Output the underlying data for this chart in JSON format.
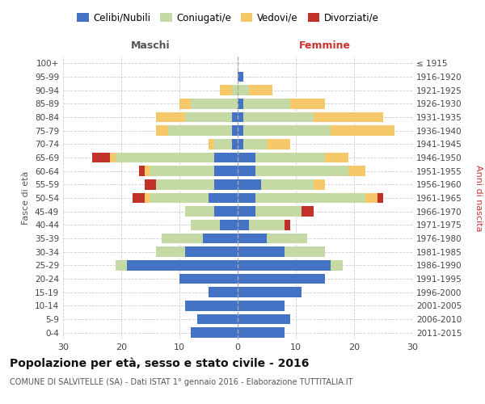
{
  "age_groups_bottom_to_top": [
    "0-4",
    "5-9",
    "10-14",
    "15-19",
    "20-24",
    "25-29",
    "30-34",
    "35-39",
    "40-44",
    "45-49",
    "50-54",
    "55-59",
    "60-64",
    "65-69",
    "70-74",
    "75-79",
    "80-84",
    "85-89",
    "90-94",
    "95-99",
    "100+"
  ],
  "birth_years_bottom_to_top": [
    "2011-2015",
    "2006-2010",
    "2001-2005",
    "1996-2000",
    "1991-1995",
    "1986-1990",
    "1981-1985",
    "1976-1980",
    "1971-1975",
    "1966-1970",
    "1961-1965",
    "1956-1960",
    "1951-1955",
    "1946-1950",
    "1941-1945",
    "1936-1940",
    "1931-1935",
    "1926-1930",
    "1921-1925",
    "1916-1920",
    "≤ 1915"
  ],
  "male": {
    "celibi": [
      8,
      7,
      9,
      5,
      10,
      19,
      9,
      6,
      3,
      4,
      5,
      4,
      4,
      4,
      1,
      1,
      1,
      0,
      0,
      0,
      0
    ],
    "coniugati": [
      0,
      0,
      0,
      0,
      0,
      2,
      5,
      7,
      5,
      5,
      10,
      10,
      11,
      17,
      3,
      11,
      8,
      8,
      1,
      0,
      0
    ],
    "vedovi": [
      0,
      0,
      0,
      0,
      0,
      0,
      0,
      0,
      0,
      0,
      1,
      0,
      1,
      1,
      1,
      2,
      5,
      2,
      2,
      0,
      0
    ],
    "divorziati": [
      0,
      0,
      0,
      0,
      0,
      0,
      0,
      0,
      0,
      0,
      2,
      2,
      1,
      3,
      0,
      0,
      0,
      0,
      0,
      0,
      0
    ]
  },
  "female": {
    "nubili": [
      8,
      9,
      8,
      11,
      15,
      16,
      8,
      5,
      2,
      3,
      3,
      4,
      3,
      3,
      1,
      1,
      1,
      1,
      0,
      1,
      0
    ],
    "coniugate": [
      0,
      0,
      0,
      0,
      0,
      2,
      7,
      7,
      6,
      8,
      19,
      9,
      16,
      12,
      4,
      15,
      12,
      8,
      2,
      0,
      0
    ],
    "vedove": [
      0,
      0,
      0,
      0,
      0,
      0,
      0,
      0,
      0,
      0,
      2,
      2,
      3,
      4,
      4,
      11,
      12,
      6,
      4,
      0,
      0
    ],
    "divorziate": [
      0,
      0,
      0,
      0,
      0,
      0,
      0,
      0,
      1,
      2,
      1,
      0,
      0,
      0,
      0,
      0,
      0,
      0,
      0,
      0,
      0
    ]
  },
  "colors": {
    "celibi": "#4472c4",
    "coniugati": "#c5d9a4",
    "vedovi": "#f5c96a",
    "divorziati": "#c0312a"
  },
  "xlim": 30,
  "title": "Popolazione per età, sesso e stato civile - 2016",
  "subtitle": "COMUNE DI SALVITELLE (SA) - Dati ISTAT 1° gennaio 2016 - Elaborazione TUTTITALIA.IT",
  "ylabel_left": "Fasce di età",
  "ylabel_right": "Anni di nascita",
  "xlabel_left": "Maschi",
  "xlabel_right": "Femmine"
}
